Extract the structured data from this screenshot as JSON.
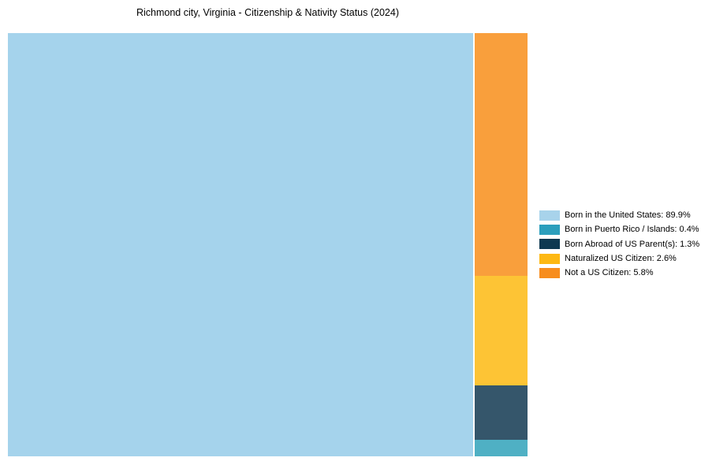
{
  "title": "Richmond city, Virginia - Citizenship & Nativity Status (2024)",
  "background_color": "#ffffff",
  "chart_data": {
    "type": "treemap",
    "title": "Richmond city, Virginia - Citizenship & Nativity Status (2024)",
    "legend_position": "right",
    "layout": "largest category fills left side; remaining categories stacked vertically in right column, largest on top",
    "items": [
      {
        "label": "Born in the United States",
        "value_pct": 89.9,
        "legend_text": "Born in the United States: 89.9%",
        "legend_color": "#A8D3EB",
        "block_color": "#A5D3EC"
      },
      {
        "label": "Born in Puerto Rico / Islands",
        "value_pct": 0.4,
        "legend_text": "Born in Puerto Rico / Islands: 0.4%",
        "legend_color": "#2B9EBC",
        "block_color": "#4FB0C4"
      },
      {
        "label": "Born Abroad of US Parent(s)",
        "value_pct": 1.3,
        "legend_text": "Born Abroad of US Parent(s): 1.3%",
        "legend_color": "#0E3951",
        "block_color": "#35566B"
      },
      {
        "label": "Naturalized US Citizen",
        "value_pct": 2.6,
        "legend_text": "Naturalized US Citizen: 2.6%",
        "legend_color": "#FDB813",
        "block_color": "#FDC435"
      },
      {
        "label": "Not a US Citizen",
        "value_pct": 5.8,
        "legend_text": "Not a US Citizen: 5.8%",
        "legend_color": "#F78D1E",
        "block_color": "#F99F3C"
      }
    ]
  }
}
